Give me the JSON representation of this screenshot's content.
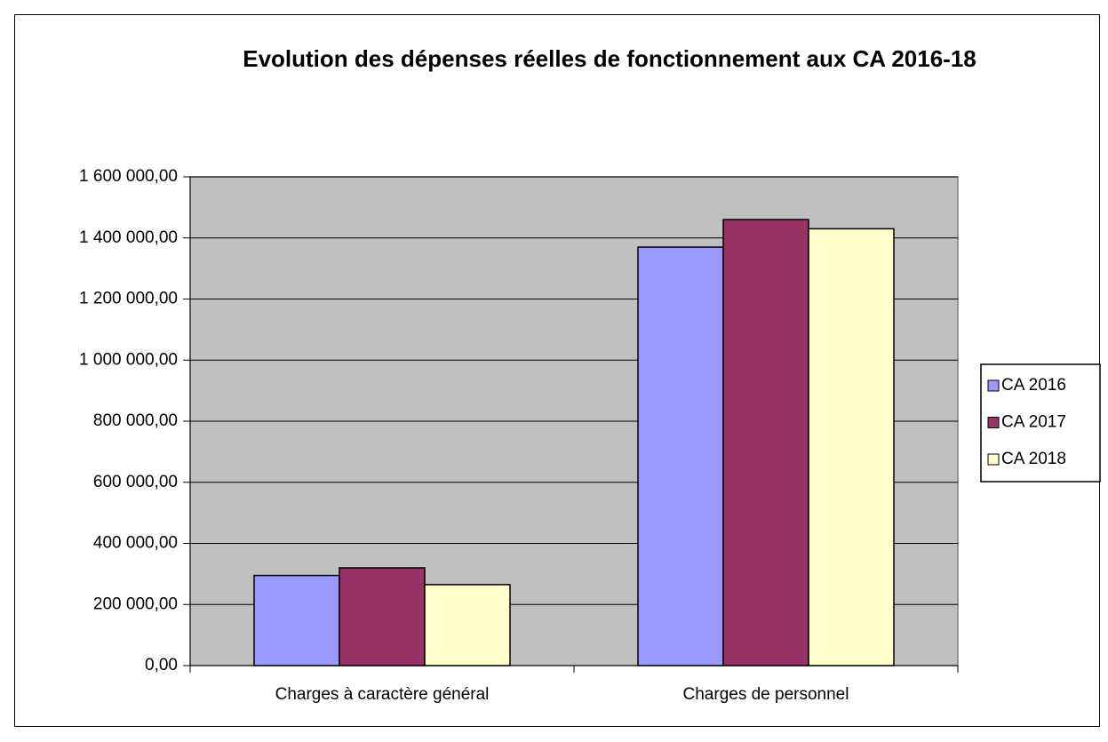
{
  "chart_data": {
    "type": "bar",
    "title": "Evolution des dépenses réelles de fonctionnement aux CA 2016-18",
    "categories": [
      "Charges à caractère général",
      "Charges de personnel"
    ],
    "series": [
      {
        "name": "CA 2016",
        "color": "#9999ff",
        "values": [
          295000,
          1370000
        ]
      },
      {
        "name": "CA 2017",
        "color": "#993366",
        "values": [
          320000,
          1460000
        ]
      },
      {
        "name": "CA 2018",
        "color": "#ffffcc",
        "values": [
          265000,
          1430000
        ]
      }
    ],
    "ylim": [
      0,
      1600000
    ],
    "yticks": [
      {
        "value": 0,
        "label": "0,00"
      },
      {
        "value": 200000,
        "label": "200 000,00"
      },
      {
        "value": 400000,
        "label": "400 000,00"
      },
      {
        "value": 600000,
        "label": "600 000,00"
      },
      {
        "value": 800000,
        "label": "800 000,00"
      },
      {
        "value": 1000000,
        "label": "1 000 000,00"
      },
      {
        "value": 1200000,
        "label": "1 200 000,00"
      },
      {
        "value": 1400000,
        "label": "1 400 000,00"
      },
      {
        "value": 1600000,
        "label": "1 600 000,00"
      }
    ],
    "grid": true,
    "legend": "right",
    "plot_background": "#c0c0c0"
  }
}
